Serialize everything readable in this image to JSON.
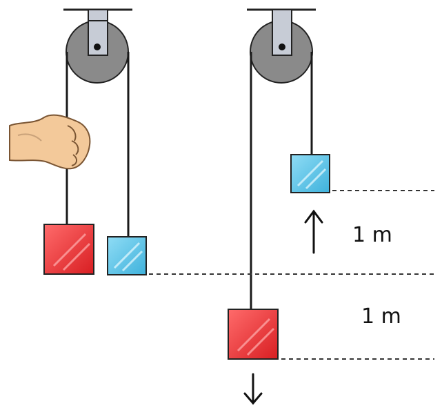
{
  "labels": {
    "upper_distance": "1 m",
    "lower_distance": "1 m"
  },
  "colors": {
    "heavy_block": "#e8282c",
    "light_block": "#5cc6ea",
    "pulley": "#8a8a8a",
    "bracket": "#c7ccd6",
    "rope": "#1a1a1a",
    "guide_line": "#333333",
    "hand": "#f3c99a"
  },
  "icons": {
    "hand": "hand-icon",
    "up_arrow": "arrow-up-icon",
    "down_arrow": "arrow-down-icon"
  }
}
